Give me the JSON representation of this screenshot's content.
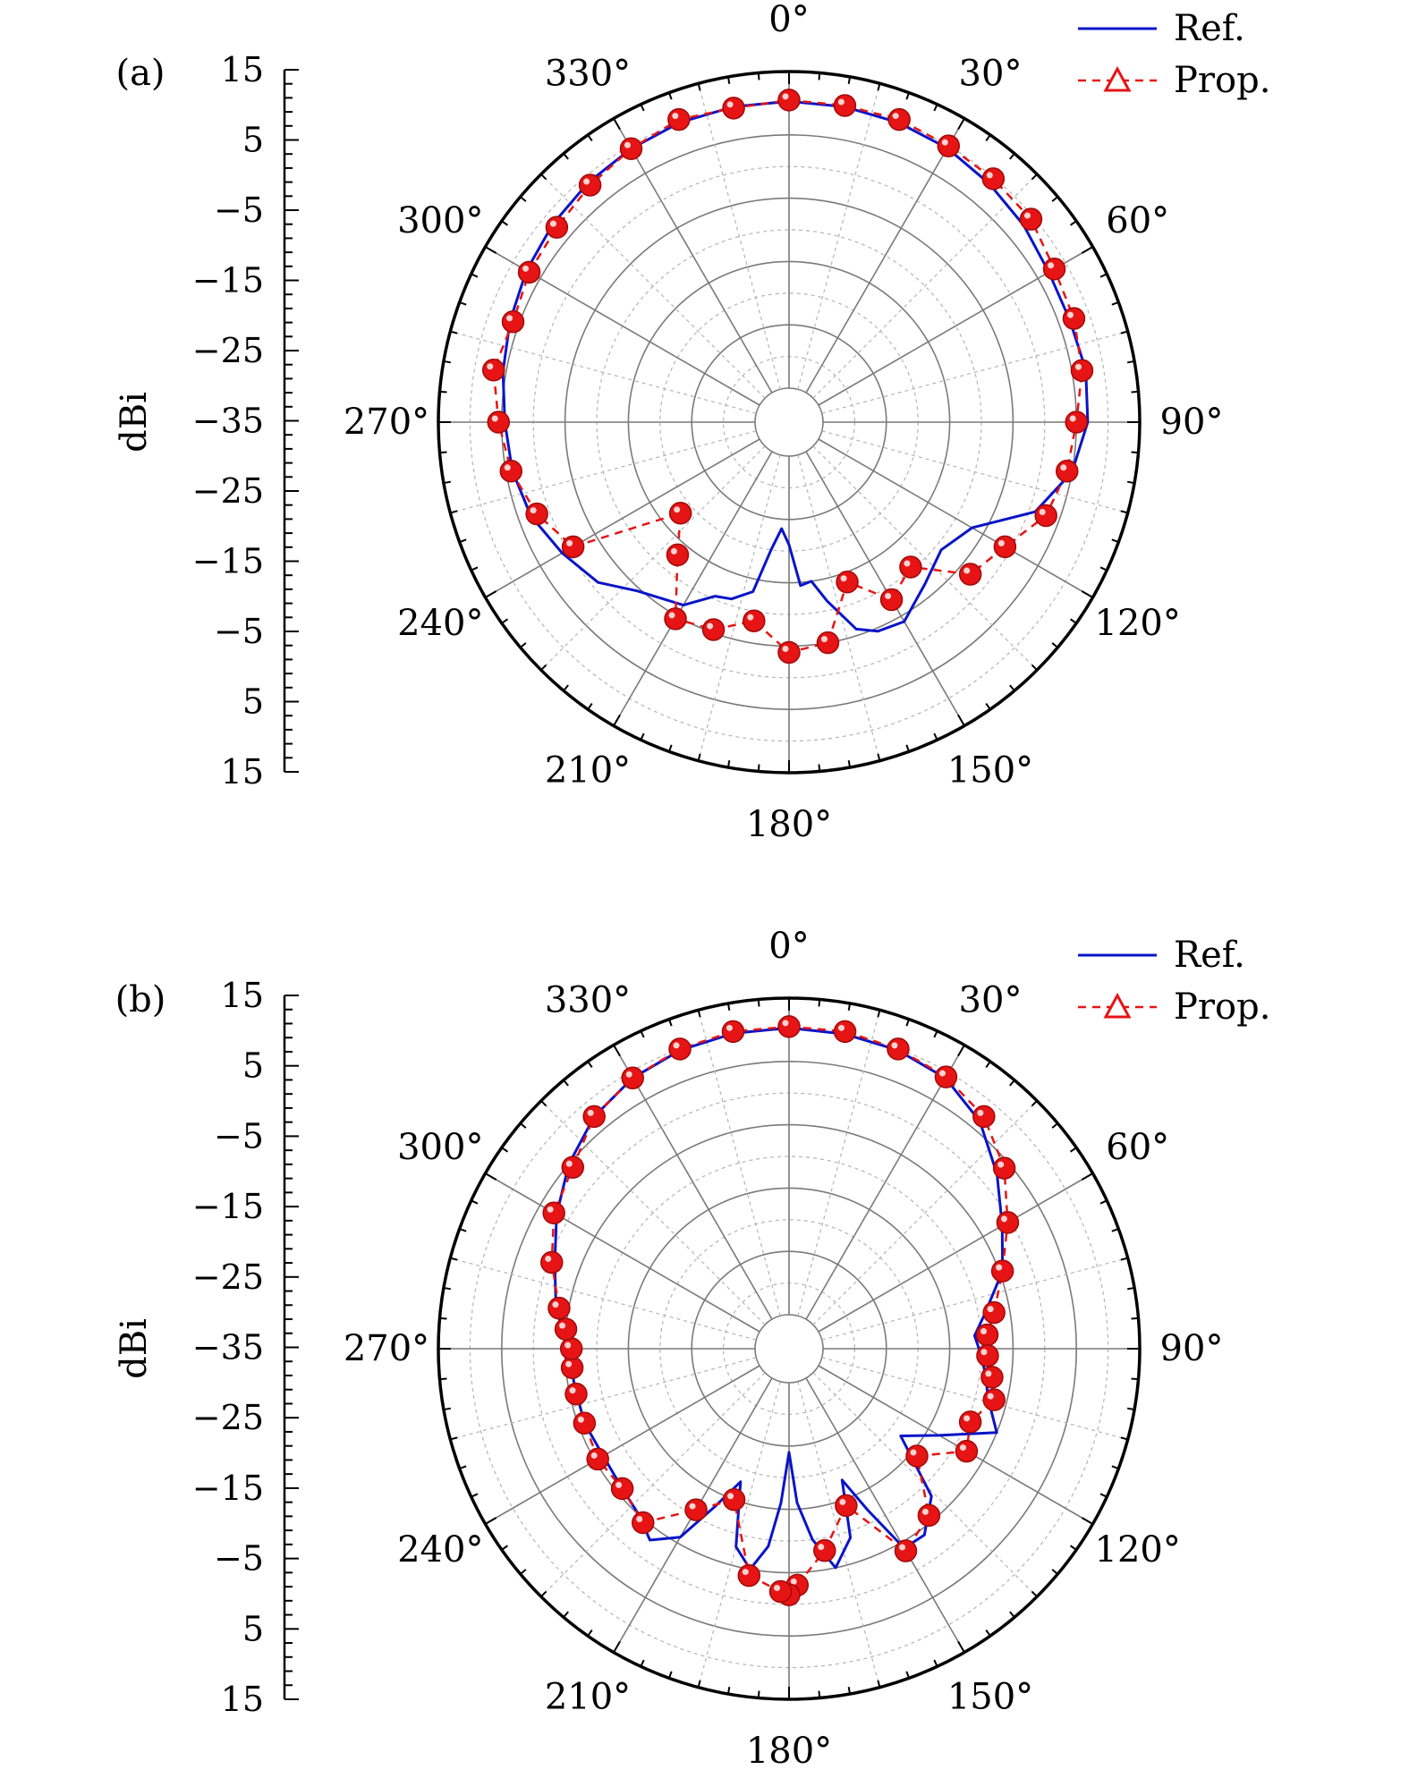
{
  "chart_data": [
    {
      "type": "polar",
      "panel_label": "(a)",
      "ylabel": "dBi",
      "radial_axis": {
        "range": [
          -35,
          15
        ],
        "tick_labels": [
          "15",
          "5",
          "−5",
          "−15",
          "−25",
          "−35",
          "−25",
          "−15",
          "−5",
          "5",
          "15"
        ]
      },
      "angle_labels": [
        "0°",
        "30°",
        "60°",
        "90°",
        "120°",
        "150°",
        "180°",
        "210°",
        "240°",
        "270°",
        "300°",
        "330°"
      ],
      "legend": {
        "position": "top-right",
        "entries": [
          "Ref.",
          "Prop."
        ]
      },
      "series": [
        {
          "name": "Ref.",
          "color": "#0a14c8",
          "style": "solid",
          "angles": [
            0,
            10,
            20,
            30,
            40,
            50,
            60,
            70,
            80,
            90,
            100,
            110,
            120,
            130,
            140,
            150,
            157,
            162,
            168,
            172,
            176,
            180,
            184,
            188,
            192,
            198,
            203,
            210,
            216,
            222,
            230,
            240,
            250,
            260,
            270,
            280,
            290,
            300,
            310,
            320,
            330,
            340,
            350,
            360
          ],
          "values": [
            10.3,
            10.2,
            10.0,
            9.6,
            8.8,
            8.0,
            7.0,
            6.8,
            7.2,
            6.8,
            5.0,
            1.0,
            -7.0,
            -9.0,
            -7.0,
            -4.0,
            -4.5,
            -6.0,
            -11.5,
            -15.0,
            -14.5,
            -21.0,
            -23.5,
            -20.0,
            -13.0,
            -11.0,
            -10.5,
            -7.0,
            -6.0,
            -4.5,
            -1.0,
            1.0,
            3.0,
            4.0,
            4.5,
            5.5,
            6.5,
            7.5,
            8.3,
            9.0,
            9.5,
            10.0,
            10.2,
            10.3
          ]
        },
        {
          "name": "Prop.",
          "color": "#e61414",
          "style": "dashed",
          "angles": [
            0,
            10,
            20,
            30,
            40,
            50,
            60,
            70,
            80,
            90,
            100,
            110,
            120,
            130,
            140,
            150,
            160,
            170,
            180,
            190,
            200,
            210,
            220,
            230,
            240,
            250,
            260,
            270,
            280,
            290,
            300,
            310,
            320,
            330,
            340,
            350
          ],
          "values": [
            10.5,
            10.4,
            10.5,
            10.0,
            9.8,
            9.5,
            8.0,
            7.5,
            6.6,
            5.0,
            4.2,
            2.8,
            -1.0,
            -3.0,
            -10.5,
            -8.0,
            -13.5,
            -5.0,
            -4.0,
            -8.5,
            -5.5,
            -4.5,
            -13.0,
            -18.0,
            -1.0,
            2.0,
            4.2,
            5.5,
            7.0,
            6.0,
            7.0,
            7.5,
            8.5,
            9.5,
            10.5,
            10.0
          ]
        }
      ]
    },
    {
      "type": "polar",
      "panel_label": "(b)",
      "ylabel": "dBi",
      "radial_axis": {
        "range": [
          -35,
          15
        ],
        "tick_labels": [
          "15",
          "5",
          "−5",
          "−15",
          "−25",
          "−35",
          "−25",
          "−15",
          "−5",
          "5",
          "15"
        ]
      },
      "angle_labels": [
        "0°",
        "30°",
        "60°",
        "90°",
        "120°",
        "150°",
        "180°",
        "210°",
        "240°",
        "270°",
        "300°",
        "330°"
      ],
      "legend": {
        "position": "top-right",
        "entries": [
          "Ref.",
          "Prop."
        ]
      },
      "series": [
        {
          "name": "Ref.",
          "color": "#0a14c8",
          "style": "solid",
          "angles": [
            0,
            10,
            20,
            30,
            40,
            50,
            60,
            70,
            80,
            86,
            92,
            98,
            104,
            112,
            120,
            128,
            136,
            144,
            150,
            154,
            158,
            162,
            168,
            173,
            177,
            180,
            183,
            186,
            190,
            195,
            200,
            205,
            210,
            216,
            222,
            230,
            240,
            250,
            260,
            270,
            280,
            290,
            300,
            310,
            320,
            330,
            340,
            350,
            360
          ],
          "values": [
            10.3,
            10.1,
            9.8,
            9.0,
            6.5,
            2.5,
            -1.5,
            -4.5,
            -9.0,
            -11.0,
            -10.0,
            -9.0,
            -8.0,
            -5.0,
            -13.0,
            -18.0,
            -8.0,
            -4.0,
            -4.0,
            -12.0,
            -18.0,
            -9.0,
            -5.0,
            -10.0,
            -16.0,
            -24.0,
            -16.0,
            -9.0,
            -5.0,
            -8.0,
            -18.0,
            -13.0,
            -6.0,
            -3.0,
            -5.0,
            -6.0,
            -6.5,
            -6.0,
            -6.0,
            -5.5,
            -3.0,
            -1.0,
            2.0,
            5.0,
            7.5,
            9.0,
            9.8,
            10.2,
            10.3
          ]
        },
        {
          "name": "Prop.",
          "color": "#e61414",
          "style": "dashed",
          "angles": [
            0,
            10,
            20,
            30,
            40,
            50,
            60,
            70,
            80,
            86,
            92,
            98,
            104,
            112,
            120,
            130,
            140,
            150,
            160,
            170,
            178,
            180,
            182,
            190,
            200,
            210,
            220,
            230,
            240,
            250,
            258,
            265,
            270,
            275,
            280,
            290,
            300,
            310,
            320,
            330,
            340,
            350
          ],
          "values": [
            10.5,
            10.5,
            10.0,
            9.2,
            7.5,
            4.0,
            -0.5,
            -4.5,
            -7.5,
            -9.0,
            -9.0,
            -8.0,
            -7.0,
            -9.5,
            -8.0,
            -14.0,
            -6.0,
            -3.5,
            -14.0,
            -8.0,
            -3.0,
            -1.5,
            -2.0,
            -4.0,
            -15.0,
            -11.0,
            -4.5,
            -6.0,
            -5.5,
            -6.0,
            -6.0,
            -6.0,
            -6.0,
            -5.0,
            -3.5,
            -0.5,
            2.5,
            4.2,
            7.5,
            9.0,
            10.0,
            10.5
          ]
        }
      ]
    }
  ]
}
